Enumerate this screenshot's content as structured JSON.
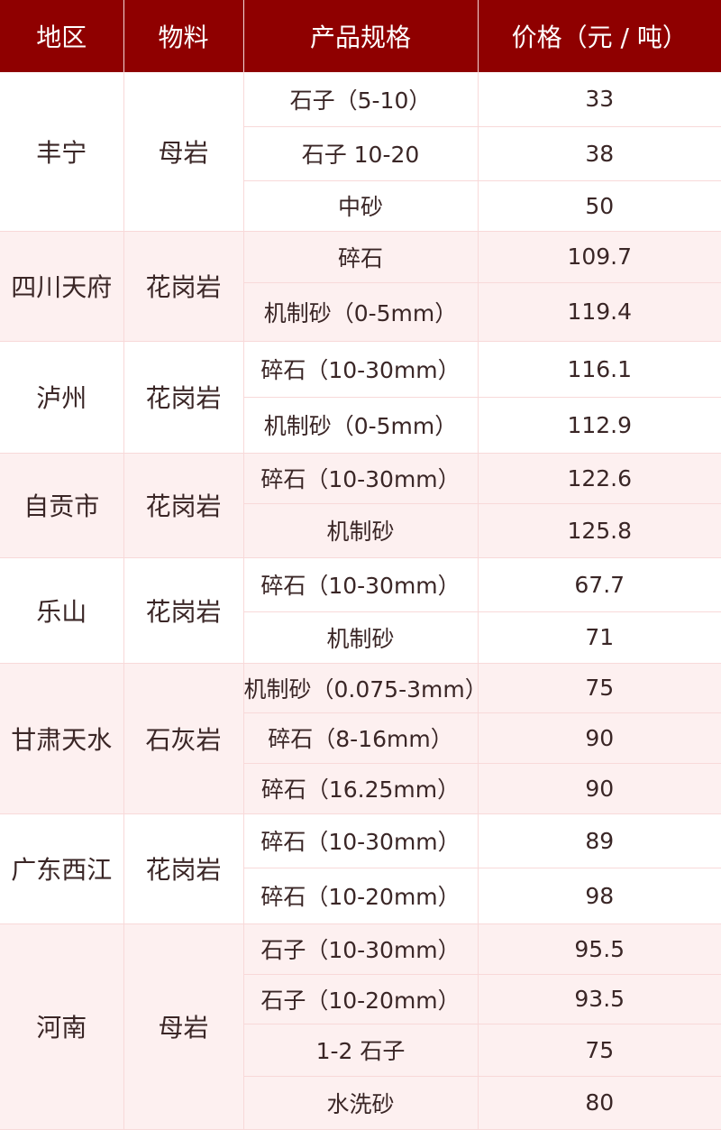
{
  "header": [
    "地区",
    "物料",
    "产品规格",
    "价格（元 / 吨）"
  ],
  "groups": [
    {
      "region": "丰宁",
      "material": "母岩",
      "rows": [
        [
          "石子（5-10）",
          "33"
        ],
        [
          "石子 10-20",
          "38"
        ],
        [
          "中砂",
          "50"
        ]
      ]
    },
    {
      "region": "四川天府",
      "material": "花岗岩",
      "rows": [
        [
          "碎石",
          "109.7"
        ],
        [
          "机制砂（0-5mm）",
          "119.4"
        ]
      ]
    },
    {
      "region": "泸州",
      "material": "花岗岩",
      "rows": [
        [
          "碎石（10-30mm）",
          "116.1"
        ],
        [
          "机制砂（0-5mm）",
          "112.9"
        ]
      ]
    },
    {
      "region": "自贡市",
      "material": "花岗岩",
      "rows": [
        [
          "碎石（10-30mm）",
          "122.6"
        ],
        [
          "机制砂",
          "125.8"
        ]
      ]
    },
    {
      "region": "乐山",
      "material": "花岗岩",
      "rows": [
        [
          "碎石（10-30mm）",
          "67.7"
        ],
        [
          "机制砂",
          "71"
        ]
      ]
    },
    {
      "region": "甘肃天水",
      "material": "石灰岩",
      "rows": [
        [
          "机制砂（0.075-3mm）",
          "75"
        ],
        [
          "碎石（8-16mm）",
          "90"
        ],
        [
          "碎石（16.25mm）",
          "90"
        ]
      ]
    },
    {
      "region": "广东西江",
      "material": "花岗岩",
      "rows": [
        [
          "碎石（10-30mm）",
          "89"
        ],
        [
          "碎石（10-20mm）",
          "98"
        ]
      ]
    },
    {
      "region": "河南",
      "material": "母岩",
      "rows": [
        [
          "石子（10-30mm）",
          "95.5"
        ],
        [
          "石子（10-20mm）",
          "93.5"
        ],
        [
          "1-2 石子",
          "75"
        ],
        [
          "水洗砂",
          "80"
        ]
      ]
    }
  ]
}
